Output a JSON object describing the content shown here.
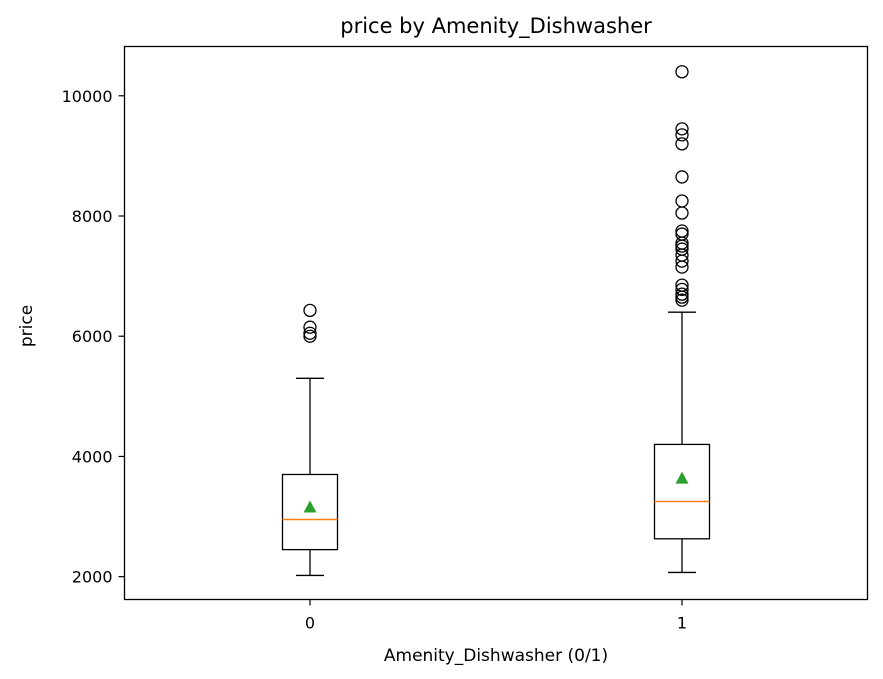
{
  "chart_data": {
    "type": "box",
    "title": "price by Amenity_Dishwasher",
    "xlabel": "Amenity_Dishwasher (0/1)",
    "ylabel": "price",
    "ylim": [
      1620,
      10820
    ],
    "yticks": [
      2000,
      4000,
      6000,
      8000,
      10000
    ],
    "grid": false,
    "categories": [
      "0",
      "1"
    ],
    "boxes": [
      {
        "category": "0",
        "whisker_low": 2020,
        "q1": 2450,
        "median": 2950,
        "q3": 3700,
        "whisker_high": 5300,
        "mean": 3150,
        "outliers": [
          6000,
          6050,
          6150,
          6430
        ]
      },
      {
        "category": "1",
        "whisker_low": 2070,
        "q1": 2630,
        "median": 3250,
        "q3": 4200,
        "whisker_high": 6400,
        "mean": 3630,
        "outliers": [
          6600,
          6650,
          6700,
          6780,
          6850,
          7150,
          7250,
          7350,
          7450,
          7500,
          7550,
          7700,
          7750,
          8050,
          8250,
          8650,
          9200,
          9350,
          9450,
          10400
        ]
      }
    ],
    "colors": {
      "median": "#ff7f0e",
      "mean_marker": "#2ca02c",
      "box": "#000000"
    }
  }
}
